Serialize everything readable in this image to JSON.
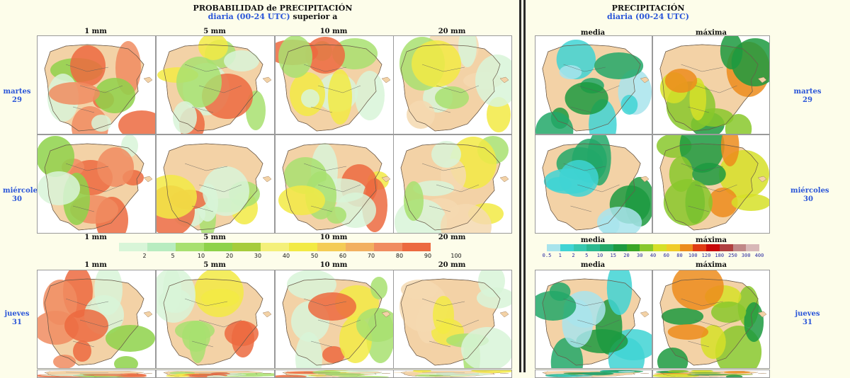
{
  "left_panel": {
    "title_main": "PROBABILIDAD de PRECIPITACIÓN",
    "title_sub_blue": "diaria (00-24 UTC)",
    "title_sub_black": "superior a",
    "thresholds": [
      "1 mm",
      "5 mm",
      "10 mm",
      "20 mm"
    ],
    "legend_ticks": [
      "2",
      "5",
      "10",
      "20",
      "30",
      "40",
      "50",
      "60",
      "70",
      "80",
      "90",
      "100"
    ],
    "legend_colors": [
      "#d8f5d8",
      "#b8ecc0",
      "#a8e070",
      "#8ed24a",
      "#a6cc3c",
      "#f4f07a",
      "#f2ea44",
      "#f4cc55",
      "#f2b060",
      "#f08c60",
      "#ec6a40"
    ]
  },
  "right_panel": {
    "title_main": "PRECIPITACIÓN",
    "title_sub_blue": "diaria (00-24 UTC)",
    "columns": [
      "media",
      "máxima"
    ],
    "legend_ticks": [
      "0.5",
      "1",
      "2",
      "5",
      "10",
      "15",
      "20",
      "30",
      "40",
      "60",
      "80",
      "100",
      "120",
      "180",
      "250",
      "300",
      "400"
    ],
    "legend_colors": [
      "#a8e4ec",
      "#40d4d4",
      "#38c8b0",
      "#2cb890",
      "#22a868",
      "#1c9a40",
      "#3aa626",
      "#88c82c",
      "#d6e028",
      "#f0cc28",
      "#ec8c1c",
      "#e03c14",
      "#c80808",
      "#b04040",
      "#c08888",
      "#d8b8b8"
    ]
  },
  "days": [
    {
      "weekday": "martes",
      "num": "29"
    },
    {
      "weekday": "miércoles",
      "num": "30"
    },
    {
      "weekday": "jueves",
      "num": "31"
    }
  ]
}
